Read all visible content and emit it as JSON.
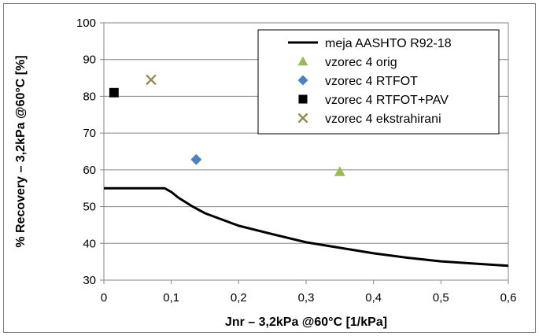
{
  "chart_data": {
    "type": "scatter",
    "xlabel": "Jnr  – 3,2kPa @60°C  [1/kPa]",
    "ylabel": "% Recovery  – 3,2kPa @60°C [%]",
    "xlim": [
      0,
      0.6
    ],
    "ylim": [
      30,
      100
    ],
    "x_ticks": [
      0,
      0.1,
      0.2,
      0.3,
      0.4,
      0.5,
      0.6
    ],
    "x_tick_labels": [
      "0",
      "0,1",
      "0,2",
      "0,3",
      "0,4",
      "0,5",
      "0,6"
    ],
    "y_ticks": [
      30,
      40,
      50,
      60,
      70,
      80,
      90,
      100
    ],
    "y_tick_labels": [
      "30",
      "40",
      "50",
      "60",
      "70",
      "80",
      "90",
      "100"
    ],
    "grid": "horizontal",
    "legend_position": "top-right",
    "series": [
      {
        "name": "meja AASHTO R92-18",
        "kind": "line",
        "color": "#000000",
        "x": [
          0,
          0.09,
          0.1,
          0.11,
          0.13,
          0.15,
          0.2,
          0.25,
          0.3,
          0.35,
          0.4,
          0.45,
          0.5,
          0.55,
          0.6
        ],
        "y": [
          55,
          55,
          54,
          52.5,
          50.2,
          48.2,
          44.8,
          42.5,
          40.3,
          38.8,
          37.3,
          36.1,
          35.1,
          34.5,
          33.9
        ]
      },
      {
        "name": "vzorec 4 orig",
        "kind": "marker",
        "marker": "triangle",
        "color": "#9bbb59",
        "x": [
          0.35
        ],
        "y": [
          59.5
        ]
      },
      {
        "name": "vzorec 4 RTFOT",
        "kind": "marker",
        "marker": "diamond",
        "color": "#4f81bd",
        "x": [
          0.137
        ],
        "y": [
          62.8
        ]
      },
      {
        "name": "vzorec 4 RTFOT+PAV",
        "kind": "marker",
        "marker": "square",
        "color": "#000000",
        "x": [
          0.015
        ],
        "y": [
          81
        ]
      },
      {
        "name": "vzorec 4 ekstrahirani",
        "kind": "marker",
        "marker": "x",
        "color": "#948a54",
        "x": [
          0.07
        ],
        "y": [
          84.5
        ]
      }
    ]
  }
}
